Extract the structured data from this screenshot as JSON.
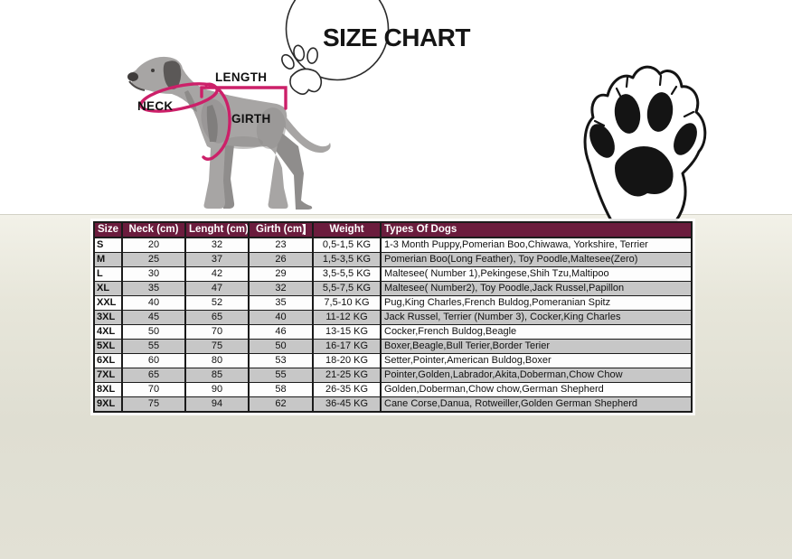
{
  "title": "SIZE CHART",
  "diagram": {
    "neck_label": "NECK",
    "length_label": "LENGTH",
    "girth_label": "GIRTH"
  },
  "icons": {
    "title_badge": "paw-outline-icon",
    "right_decoration": "paw-print-icon"
  },
  "colors": {
    "header_bg": "#6b1c3d",
    "row_alt": "#c7c7c7",
    "accent_pink": "#cc2069",
    "dog_gray": "#a7a5a4",
    "background_lower": "#dfded2",
    "ink": "#1b1b1b"
  },
  "chart_data": {
    "type": "table",
    "title": "SIZE CHART",
    "columns": [
      "Size",
      "Neck (cm)",
      "Lenght (cm)",
      "Girth (cm)",
      "Weight",
      "Types Of Dogs"
    ],
    "rows": [
      [
        "S",
        "20",
        "32",
        "23",
        "0,5-1,5 KG",
        "1-3 Month Puppy,Pomerian Boo,Chiwawa, Yorkshire, Terrier"
      ],
      [
        "M",
        "25",
        "37",
        "26",
        "1,5-3,5 KG",
        "Pomerian Boo(Long Feather), Toy Poodle,Maltesee(Zero)"
      ],
      [
        "L",
        "30",
        "42",
        "29",
        "3,5-5,5 KG",
        "Maltesee( Number 1),Pekingese,Shih Tzu,Maltipoo"
      ],
      [
        "XL",
        "35",
        "47",
        "32",
        "5,5-7,5 KG",
        "Maltesee( Number2), Toy Poodle,Jack Russel,Papillon"
      ],
      [
        "XXL",
        "40",
        "52",
        "35",
        "7,5-10 KG",
        "Pug,King Charles,French Buldog,Pomeranian Spitz"
      ],
      [
        "3XL",
        "45",
        "65",
        "40",
        "11-12 KG",
        "Jack Russel, Terrier (Number 3), Cocker,King Charles"
      ],
      [
        "4XL",
        "50",
        "70",
        "46",
        "13-15 KG",
        "Cocker,French Buldog,Beagle"
      ],
      [
        "5XL",
        "55",
        "75",
        "50",
        "16-17 KG",
        "Boxer,Beagle,Bull Terier,Border Terier"
      ],
      [
        "6XL",
        "60",
        "80",
        "53",
        "18-20 KG",
        "Setter,Pointer,American Buldog,Boxer"
      ],
      [
        "7XL",
        "65",
        "85",
        "55",
        "21-25 KG",
        "Pointer,Golden,Labrador,Akita,Doberman,Chow Chow"
      ],
      [
        "8XL",
        "70",
        "90",
        "58",
        "26-35 KG",
        "Golden,Doberman,Chow chow,German Shepherd"
      ],
      [
        "9XL",
        "75",
        "94",
        "62",
        "36-45 KG",
        "Cane Corse,Danua, Rotweiller,Golden German Shepherd"
      ]
    ]
  }
}
